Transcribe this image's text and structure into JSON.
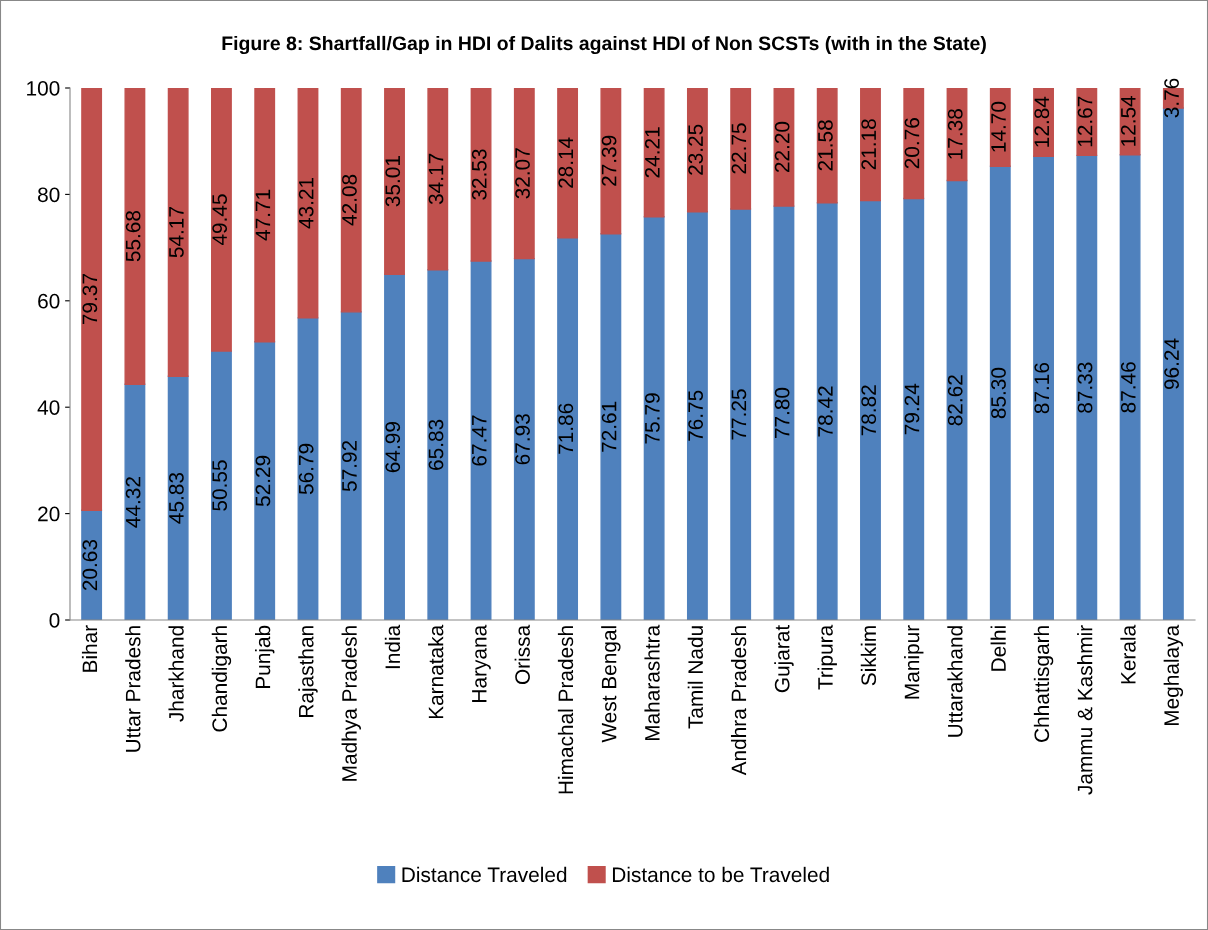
{
  "chart_data": {
    "type": "bar",
    "stacked": true,
    "title": "Figure 8: Shartfall/Gap in HDI of Dalits against HDI of Non SCSTs (with in the State)",
    "categories": [
      "Bihar",
      "Uttar Pradesh",
      "Jharkhand",
      "Chandigarh",
      "Punjab",
      "Rajasthan",
      "Madhya Pradesh",
      "India",
      "Karnataka",
      "Haryana",
      "Orissa",
      "Himachal Pradesh",
      "West Bengal",
      "Maharashtra",
      "Tamil Nadu",
      "Andhra Pradesh",
      "Gujarat",
      "Tripura",
      "Sikkim",
      "Manipur",
      "Uttarakhand",
      "Delhi",
      "Chhattisgarh",
      "Jammu & Kashmir",
      "Kerala",
      "Meghalaya"
    ],
    "series": [
      {
        "name": "Distance Traveled",
        "color": "#4f81bd",
        "values": [
          20.63,
          44.32,
          45.83,
          50.55,
          52.29,
          56.79,
          57.92,
          64.99,
          65.83,
          67.47,
          67.93,
          71.86,
          72.61,
          75.79,
          76.75,
          77.25,
          77.8,
          78.42,
          78.82,
          79.24,
          82.62,
          85.3,
          87.16,
          87.33,
          87.46,
          96.24
        ],
        "value_labels": [
          "20.63",
          "44.32",
          "45.83",
          "50.55",
          "52.29",
          "56.79",
          "57.92",
          "64.99",
          "65.83",
          "67.47",
          "67.93",
          "71.86",
          "72.61",
          "75.79",
          "76.75",
          "77.25",
          "77.80",
          "78.42",
          "78.82",
          "79.24",
          "82.62",
          "85.30",
          "87.16",
          "87.33",
          "87.46",
          "96.24"
        ]
      },
      {
        "name": "Distance to be Traveled",
        "color": "#c0504d",
        "values": [
          79.37,
          55.68,
          54.17,
          49.45,
          47.71,
          43.21,
          42.08,
          35.01,
          34.17,
          32.53,
          32.07,
          28.14,
          27.39,
          24.21,
          23.25,
          22.75,
          22.2,
          21.58,
          21.18,
          20.76,
          17.38,
          14.7,
          12.84,
          12.67,
          12.54,
          3.76
        ],
        "value_labels": [
          "79.37",
          "55.68",
          "54.17",
          "49.45",
          "47.71",
          "43.21",
          "42.08",
          "35.01",
          "34.17",
          "32.53",
          "32.07",
          "28.14",
          "27.39",
          "24.21",
          "23.25",
          "22.75",
          "22.20",
          "21.58",
          "21.18",
          "20.76",
          "17.38",
          "14.70",
          "12.84",
          "12.67",
          "12.54",
          "3.76"
        ]
      }
    ],
    "ylim": [
      0,
      100
    ],
    "yticks": [
      0,
      20,
      40,
      60,
      80,
      100
    ],
    "grid": false,
    "legend": "bottom"
  }
}
